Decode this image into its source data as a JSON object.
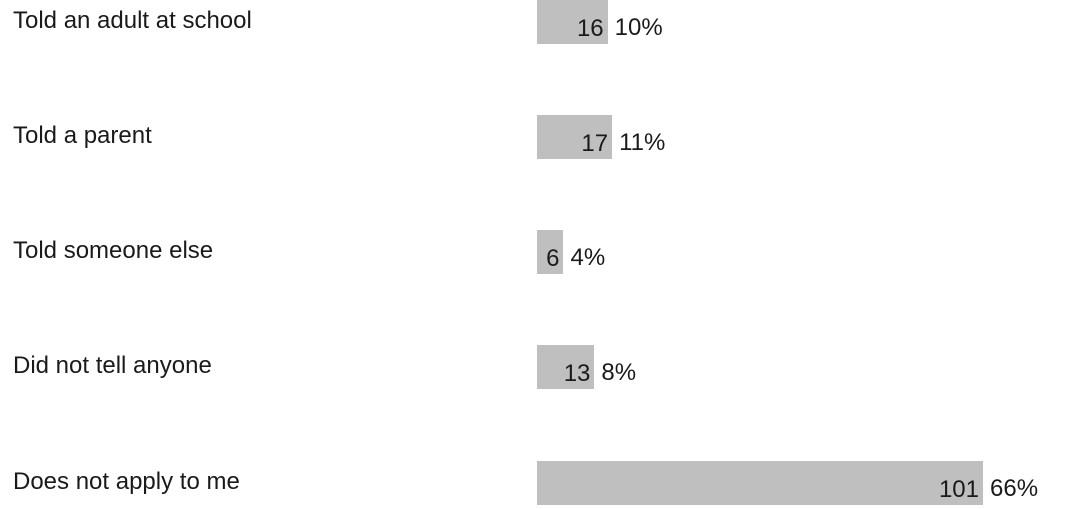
{
  "chart_data": {
    "type": "bar",
    "orientation": "horizontal",
    "categories": [
      "Told an adult at school",
      "Told a parent",
      "Told someone else",
      "Did not tell anyone",
      "Does not apply to me"
    ],
    "values": [
      16,
      17,
      6,
      13,
      101
    ],
    "percent_labels": [
      "10%",
      "11%",
      "4%",
      "8%",
      "66%"
    ],
    "xlim": [
      0,
      101
    ],
    "grid": false,
    "legend": "none",
    "colors": {
      "bar": "#bfbfbf",
      "text": "#1a1a1a"
    }
  }
}
